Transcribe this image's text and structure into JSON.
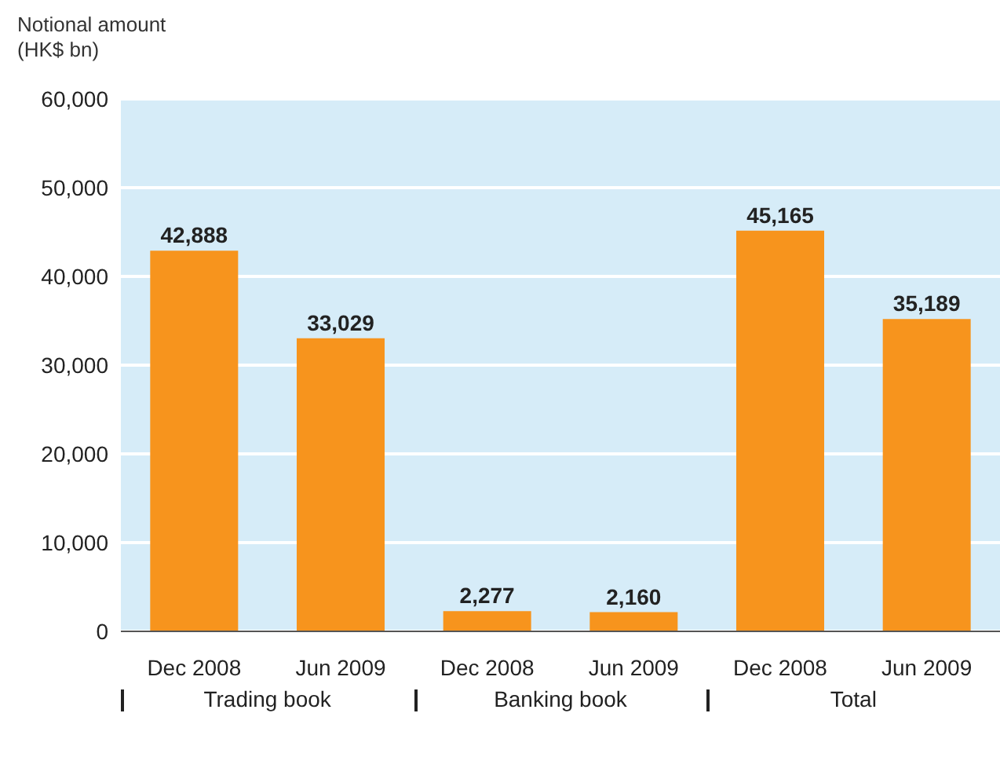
{
  "chart_data": {
    "type": "bar",
    "ylabel": "Notional amount\n(HK$ bn)",
    "categories": [
      "Dec 2008",
      "Jun 2009",
      "Dec 2008",
      "Jun 2009",
      "Dec 2008",
      "Jun 2009"
    ],
    "values": [
      42888,
      33029,
      2277,
      2160,
      45165,
      35189
    ],
    "color": "#f7941d",
    "ylim": [
      0,
      60000
    ],
    "yticks": [
      0,
      {
        "value": 10000,
        "label": "10,000"
      },
      {
        "value": 20000,
        "label": "20,000"
      },
      {
        "value": 30000,
        "label": "30,000"
      },
      {
        "value": 40000,
        "label": "40,000"
      },
      {
        "value": 50000,
        "label": "50,000"
      },
      {
        "value": 60000,
        "label": "60,000"
      }
    ],
    "value_labels": [
      "42,888",
      "33,029",
      "2,277",
      "2,160",
      "45,165",
      "35,189"
    ],
    "grid": "y",
    "annotations": [
      "Trading book",
      "Banking book",
      "Total"
    ]
  }
}
